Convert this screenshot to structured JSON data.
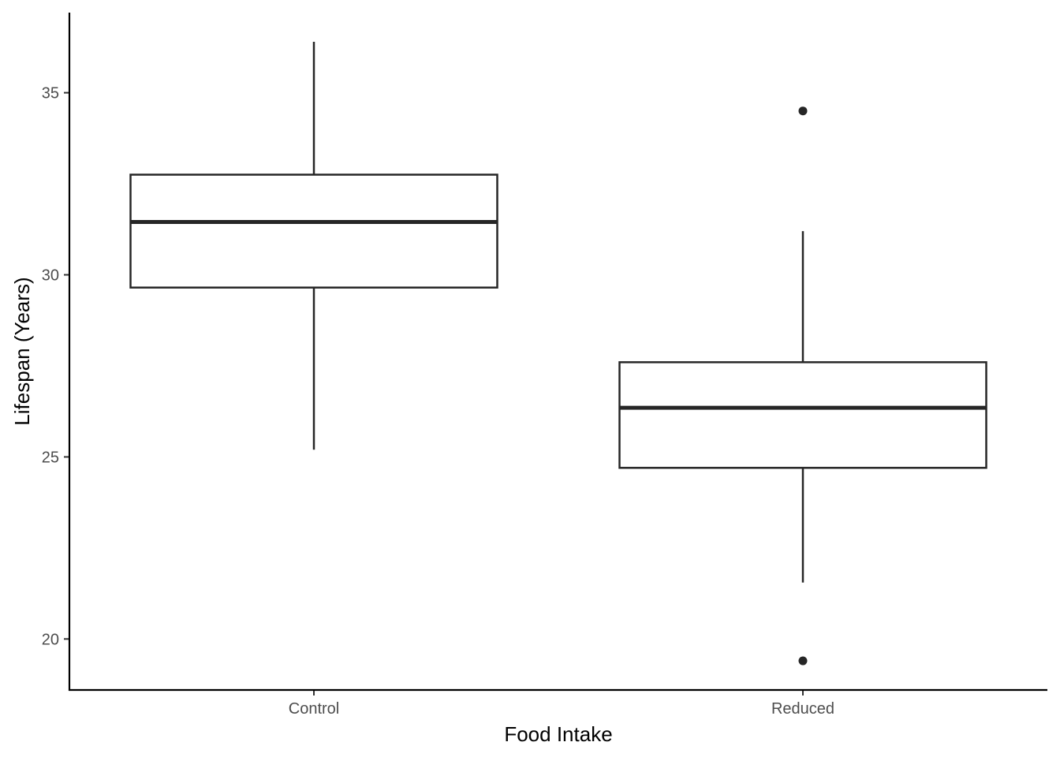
{
  "chart_data": {
    "type": "boxplot",
    "xlabel": "Food Intake",
    "ylabel": "Lifespan (Years)",
    "ylim": [
      18.6,
      37.2
    ],
    "yticks": [
      20,
      25,
      30,
      35
    ],
    "grid": false,
    "legend": "none",
    "categories": [
      "Control",
      "Reduced"
    ],
    "boxes": [
      {
        "category": "Control",
        "whisker_low": 25.2,
        "q1": 29.65,
        "median": 31.45,
        "q3": 32.75,
        "whisker_high": 36.4,
        "outliers": []
      },
      {
        "category": "Reduced",
        "whisker_low": 21.55,
        "q1": 24.7,
        "median": 26.35,
        "q3": 27.6,
        "whisker_high": 31.2,
        "outliers": [
          34.5,
          19.4
        ]
      }
    ],
    "colors": {
      "stroke": "#262626",
      "fill": "#ffffff",
      "axis": "#000000",
      "tick_text": "#4d4d4d"
    }
  }
}
